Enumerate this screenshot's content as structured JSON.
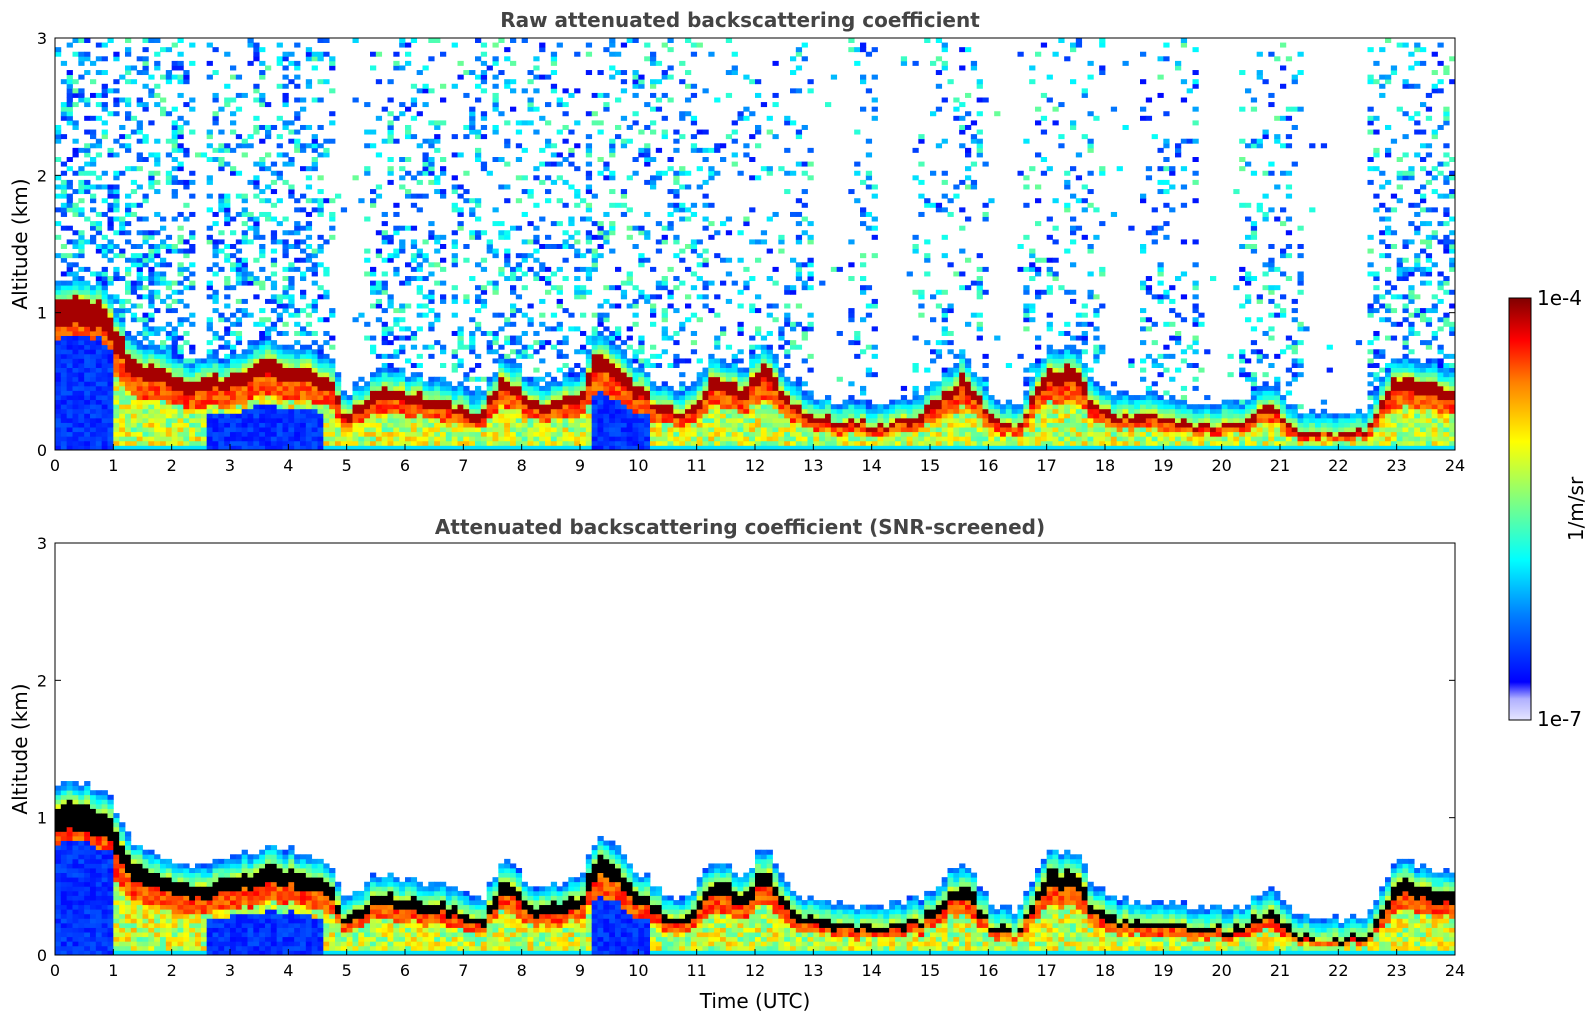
{
  "chart_data": [
    {
      "type": "heatmap",
      "title": "Raw attenuated backscattering coefficient",
      "xlabel": "",
      "ylabel": "Altitude (km)",
      "xlim": [
        0,
        24
      ],
      "ylim": [
        0,
        3
      ],
      "xticks": [
        "0",
        "1",
        "2",
        "3",
        "4",
        "5",
        "6",
        "7",
        "8",
        "9",
        "10",
        "11",
        "12",
        "13",
        "14",
        "15",
        "16",
        "17",
        "18",
        "19",
        "20",
        "21",
        "22",
        "23",
        "24"
      ],
      "yticks": [
        "0",
        "1",
        "2",
        "3"
      ],
      "screened": false,
      "layer_top_km": [
        [
          0,
          1.1
        ],
        [
          0.5,
          1.1
        ],
        [
          0.9,
          1.05
        ],
        [
          1.2,
          0.75
        ],
        [
          1.6,
          0.6
        ],
        [
          2.0,
          0.55
        ],
        [
          2.3,
          0.5
        ],
        [
          3.0,
          0.55
        ],
        [
          3.6,
          0.65
        ],
        [
          4.3,
          0.6
        ],
        [
          4.7,
          0.55
        ],
        [
          5.0,
          0.25
        ],
        [
          5.5,
          0.45
        ],
        [
          6.2,
          0.4
        ],
        [
          6.8,
          0.35
        ],
        [
          7.3,
          0.25
        ],
        [
          7.7,
          0.55
        ],
        [
          8.2,
          0.35
        ],
        [
          9.0,
          0.4
        ],
        [
          9.3,
          0.75
        ],
        [
          9.8,
          0.55
        ],
        [
          10.3,
          0.35
        ],
        [
          10.8,
          0.25
        ],
        [
          11.3,
          0.55
        ],
        [
          11.8,
          0.45
        ],
        [
          12.2,
          0.65
        ],
        [
          12.5,
          0.4
        ],
        [
          13.0,
          0.25
        ],
        [
          13.6,
          0.2
        ],
        [
          14.2,
          0.2
        ],
        [
          14.8,
          0.25
        ],
        [
          15.2,
          0.4
        ],
        [
          15.6,
          0.55
        ],
        [
          16.0,
          0.25
        ],
        [
          16.5,
          0.15
        ],
        [
          17.0,
          0.6
        ],
        [
          17.5,
          0.6
        ],
        [
          17.8,
          0.35
        ],
        [
          18.3,
          0.25
        ],
        [
          19.0,
          0.25
        ],
        [
          19.7,
          0.2
        ],
        [
          20.3,
          0.2
        ],
        [
          20.8,
          0.35
        ],
        [
          21.3,
          0.15
        ],
        [
          22.0,
          0.12
        ],
        [
          22.5,
          0.15
        ],
        [
          23.0,
          0.55
        ],
        [
          23.5,
          0.5
        ],
        [
          24,
          0.45
        ]
      ]
    },
    {
      "type": "heatmap",
      "title": "Attenuated backscattering coefficient (SNR-screened)",
      "xlabel": "Time (UTC)",
      "ylabel": "Altitude (km)",
      "xlim": [
        0,
        24
      ],
      "ylim": [
        0,
        3
      ],
      "xticks": [
        "0",
        "1",
        "2",
        "3",
        "4",
        "5",
        "6",
        "7",
        "8",
        "9",
        "10",
        "11",
        "12",
        "13",
        "14",
        "15",
        "16",
        "17",
        "18",
        "19",
        "20",
        "21",
        "22",
        "23",
        "24"
      ],
      "yticks": [
        "0",
        "1",
        "2",
        "3"
      ],
      "screened": true
    }
  ],
  "colorbar": {
    "label": "1/m/sr",
    "min_label": "1e-7",
    "max_label": "1e-4",
    "scale": "log"
  },
  "colors": {
    "low": "#e6e6ff",
    "mid": "#00ffff",
    "high": "#800000",
    "screened_mask": "#000000"
  }
}
